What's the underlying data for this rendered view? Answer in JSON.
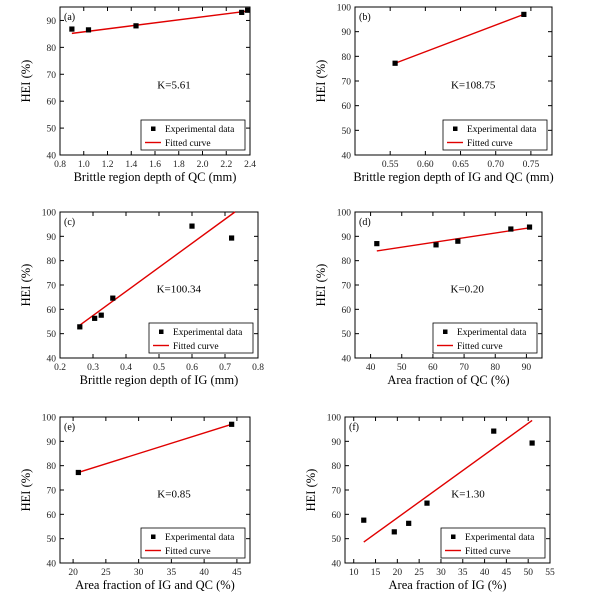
{
  "chart_data": [
    {
      "type": "scatter",
      "panel_label": "(a)",
      "xlabel": "Brittle region depth of QC (mm)",
      "ylabel": "HEI (%)",
      "xlim": [
        0.8,
        2.4
      ],
      "ylim": [
        40,
        95
      ],
      "xticks": [
        "0.8",
        "1.0",
        "1.2",
        "1.4",
        "1.6",
        "1.8",
        "2.0",
        "2.2",
        "2.4"
      ],
      "yticks": [
        "40",
        "50",
        "60",
        "70",
        "80",
        "90"
      ],
      "annotation": "K=5.61",
      "legend": [
        "Experimental data",
        "Fitted curve"
      ],
      "points": [
        [
          0.9,
          86.8
        ],
        [
          1.04,
          86.5
        ],
        [
          1.44,
          88.0
        ],
        [
          2.33,
          93.0
        ],
        [
          2.38,
          93.8
        ]
      ],
      "fit": [
        [
          0.9,
          85.2
        ],
        [
          2.4,
          93.6
        ]
      ]
    },
    {
      "type": "scatter",
      "panel_label": "(b)",
      "xlabel": "Brittle region depth of IG and QC (mm)",
      "ylabel": "HEI (%)",
      "xlim": [
        0.5,
        0.78
      ],
      "ylim": [
        40,
        100
      ],
      "xticks": [
        "0.55",
        "0.60",
        "0.65",
        "0.70",
        "0.75"
      ],
      "yticks": [
        "40",
        "50",
        "60",
        "70",
        "80",
        "90",
        "100"
      ],
      "annotation": "K=108.75",
      "legend": [
        "Experimental data",
        "Fitted curve"
      ],
      "points": [
        [
          0.557,
          77.2
        ],
        [
          0.74,
          97.0
        ]
      ],
      "fit": [
        [
          0.557,
          77.2
        ],
        [
          0.74,
          97.0
        ]
      ]
    },
    {
      "type": "scatter",
      "panel_label": "(c)",
      "xlabel": "Brittle region depth of IG (mm)",
      "ylabel": "HEI (%)",
      "xlim": [
        0.2,
        0.8
      ],
      "ylim": [
        40,
        100
      ],
      "xticks": [
        "0.2",
        "0.3",
        "0.4",
        "0.5",
        "0.6",
        "0.7",
        "0.8"
      ],
      "yticks": [
        "40",
        "50",
        "60",
        "70",
        "80",
        "90",
        "100"
      ],
      "annotation": "K=100.34",
      "legend": [
        "Experimental data",
        "Fitted curve"
      ],
      "points": [
        [
          0.26,
          52.8
        ],
        [
          0.305,
          56.3
        ],
        [
          0.325,
          57.6
        ],
        [
          0.36,
          64.6
        ],
        [
          0.6,
          94.2
        ],
        [
          0.72,
          89.3
        ]
      ],
      "fit": [
        [
          0.26,
          53.5
        ],
        [
          0.73,
          100.0
        ]
      ]
    },
    {
      "type": "scatter",
      "panel_label": "(d)",
      "xlabel": "Area fraction of QC (%)",
      "ylabel": "HEI (%)",
      "xlim": [
        35,
        95
      ],
      "ylim": [
        40,
        100
      ],
      "xticks": [
        "40",
        "50",
        "60",
        "70",
        "80",
        "90"
      ],
      "yticks": [
        "40",
        "50",
        "60",
        "70",
        "80",
        "90",
        "100"
      ],
      "annotation": "K=0.20",
      "legend": [
        "Experimental data",
        "Fitted curve"
      ],
      "points": [
        [
          42,
          87.0
        ],
        [
          61,
          86.5
        ],
        [
          68,
          88.0
        ],
        [
          85,
          93.0
        ],
        [
          91,
          93.8
        ]
      ],
      "fit": [
        [
          42,
          84.0
        ],
        [
          91,
          93.5
        ]
      ]
    },
    {
      "type": "scatter",
      "panel_label": "(e)",
      "xlabel": "Area fraction of IG and QC (%)",
      "ylabel": "HEI (%)",
      "xlim": [
        18,
        47
      ],
      "ylim": [
        40,
        100
      ],
      "xticks": [
        "20",
        "25",
        "30",
        "35",
        "40",
        "45"
      ],
      "yticks": [
        "40",
        "50",
        "60",
        "70",
        "80",
        "90",
        "100"
      ],
      "annotation": "K=0.85",
      "legend": [
        "Experimental data",
        "Fitted curve"
      ],
      "points": [
        [
          20.8,
          77.2
        ],
        [
          44.2,
          97.0
        ]
      ],
      "fit": [
        [
          20.8,
          77.2
        ],
        [
          44.2,
          97.0
        ]
      ]
    },
    {
      "type": "scatter",
      "panel_label": "(f)",
      "xlabel": "Area fraction of IG (%)",
      "ylabel": "HEI (%)",
      "xlim": [
        8,
        55
      ],
      "ylim": [
        40,
        100
      ],
      "xticks": [
        "10",
        "15",
        "20",
        "25",
        "30",
        "35",
        "40",
        "45",
        "50",
        "55"
      ],
      "yticks": [
        "40",
        "50",
        "60",
        "70",
        "80",
        "90",
        "100"
      ],
      "annotation": "K=1.30",
      "legend": [
        "Experimental data",
        "Fitted curve"
      ],
      "points": [
        [
          12.3,
          57.6
        ],
        [
          19.3,
          52.8
        ],
        [
          22.6,
          56.3
        ],
        [
          26.8,
          64.6
        ],
        [
          42.1,
          94.2
        ],
        [
          50.9,
          89.3
        ]
      ],
      "fit": [
        [
          12.3,
          48.6
        ],
        [
          50.9,
          98.6
        ]
      ]
    }
  ]
}
